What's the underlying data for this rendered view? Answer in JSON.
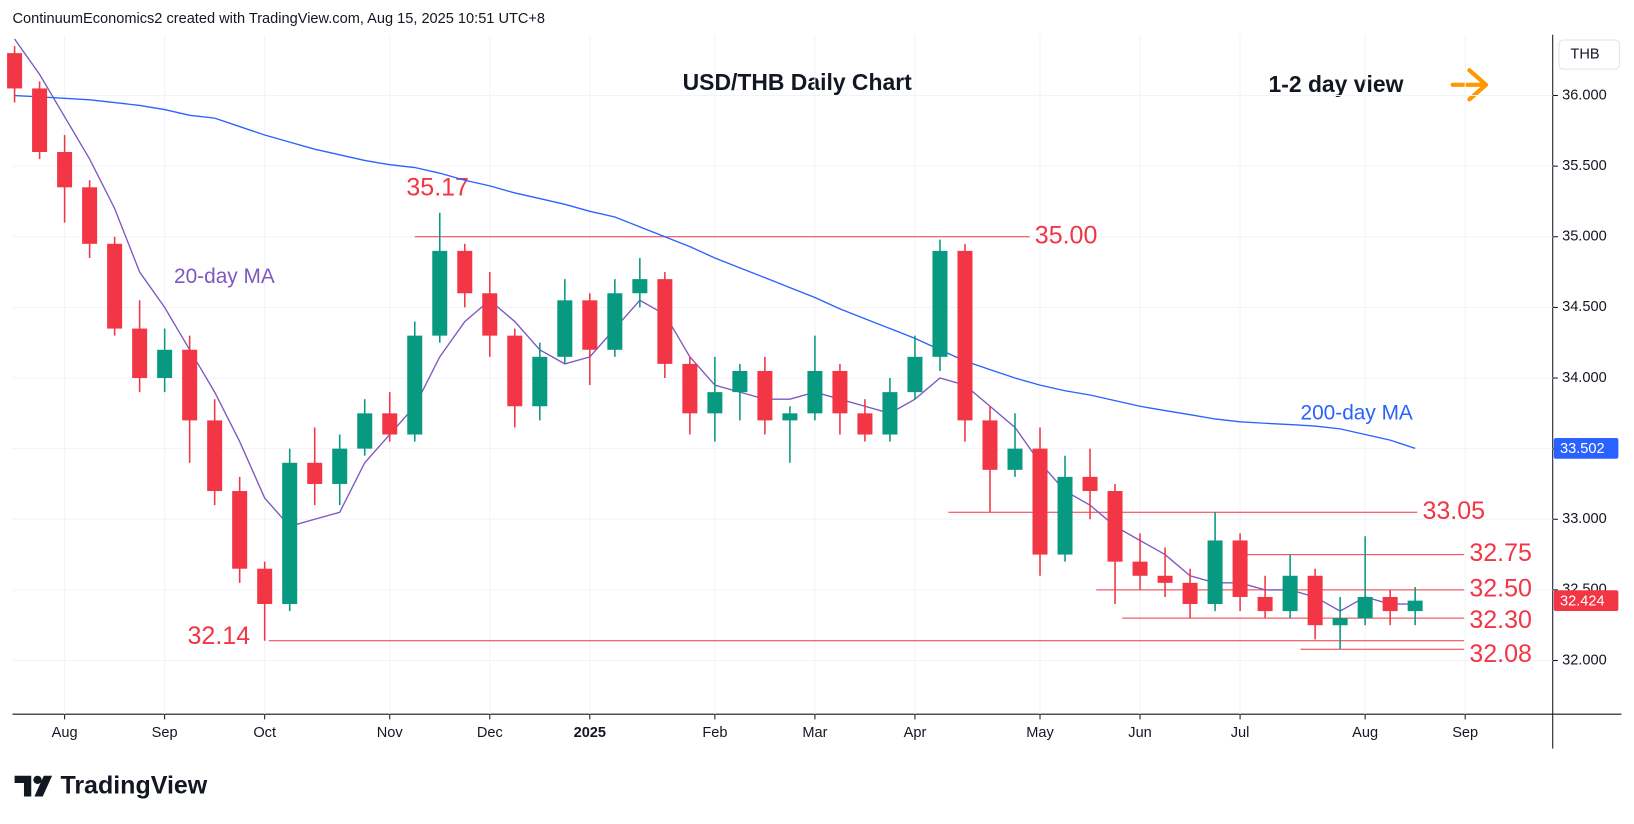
{
  "header": {
    "text": "ContinuumEconomics2 created with TradingView.com, Aug 15, 2025 10:51 UTC+8"
  },
  "footer": {
    "logo": "TradingView"
  },
  "chart_data": {
    "type": "candlestick",
    "title": "USD/THB Daily Chart",
    "subtitle": "1-2 day view",
    "currency": "THB",
    "up_color": "#089981",
    "down_color": "#f23645",
    "level_color": "#f23645",
    "grid": true,
    "categories": [
      null,
      null,
      "Aug",
      null,
      null,
      null,
      "Sep",
      null,
      null,
      null,
      "Oct",
      null,
      null,
      null,
      null,
      "Nov",
      null,
      null,
      null,
      "Dec",
      null,
      null,
      null,
      "2025",
      null,
      null,
      null,
      null,
      "Feb",
      null,
      null,
      null,
      "Mar",
      null,
      null,
      null,
      "Apr",
      null,
      null,
      null,
      null,
      "May",
      null,
      null,
      null,
      "Jun",
      null,
      null,
      null,
      "Jul",
      null,
      null,
      null,
      null,
      "Aug",
      null,
      null,
      null,
      "Sep",
      null,
      null,
      null
    ],
    "open": [
      36.3,
      36.05,
      35.6,
      35.35,
      34.95,
      34.35,
      34.0,
      34.2,
      33.7,
      33.2,
      32.65,
      32.4,
      33.4,
      33.25,
      33.5,
      33.75,
      33.6,
      34.3,
      34.9,
      34.6,
      34.3,
      33.8,
      34.15,
      34.55,
      34.2,
      34.6,
      34.7,
      34.1,
      33.75,
      33.9,
      34.05,
      33.7,
      33.75,
      34.05,
      33.75,
      33.6,
      33.9,
      34.15,
      34.9,
      33.7,
      33.35,
      33.5,
      32.75,
      33.3,
      33.2,
      32.7,
      32.6,
      32.55,
      32.4,
      32.85,
      32.45,
      32.35,
      32.6,
      32.25,
      32.3,
      32.45,
      32.35,
      null,
      null,
      null,
      null,
      null
    ],
    "high": [
      36.35,
      36.1,
      35.72,
      35.4,
      35.0,
      34.55,
      34.35,
      34.3,
      33.85,
      33.3,
      32.7,
      33.5,
      33.65,
      33.6,
      33.85,
      33.9,
      34.4,
      35.17,
      34.95,
      34.75,
      34.35,
      34.25,
      34.7,
      34.6,
      34.7,
      34.85,
      34.75,
      34.15,
      34.15,
      34.1,
      34.15,
      33.8,
      34.3,
      34.1,
      33.85,
      34.0,
      34.3,
      34.98,
      34.95,
      33.8,
      33.75,
      33.65,
      33.45,
      33.5,
      33.25,
      32.9,
      32.8,
      32.65,
      33.05,
      32.9,
      32.6,
      32.75,
      32.65,
      32.45,
      32.88,
      32.5,
      32.52,
      null,
      null,
      null,
      null,
      null
    ],
    "low": [
      35.95,
      35.55,
      35.1,
      34.85,
      34.3,
      33.9,
      33.9,
      33.4,
      33.1,
      32.55,
      32.14,
      32.35,
      33.1,
      33.1,
      33.45,
      33.55,
      33.55,
      34.25,
      34.5,
      34.15,
      33.65,
      33.7,
      34.1,
      33.95,
      34.15,
      34.5,
      34.0,
      33.6,
      33.55,
      33.7,
      33.6,
      33.4,
      33.7,
      33.6,
      33.55,
      33.55,
      33.85,
      34.05,
      33.55,
      33.05,
      33.3,
      32.6,
      32.7,
      33.0,
      32.4,
      32.5,
      32.45,
      32.3,
      32.35,
      32.35,
      32.3,
      32.3,
      32.15,
      32.08,
      32.25,
      32.25,
      32.25,
      null,
      null,
      null,
      null,
      null
    ],
    "close": [
      36.05,
      35.6,
      35.35,
      34.95,
      34.35,
      34.0,
      34.2,
      33.7,
      33.2,
      32.65,
      32.4,
      33.4,
      33.25,
      33.5,
      33.75,
      33.6,
      34.3,
      34.9,
      34.6,
      34.3,
      33.8,
      34.15,
      34.55,
      34.2,
      34.6,
      34.7,
      34.1,
      33.75,
      33.9,
      34.05,
      33.7,
      33.75,
      34.05,
      33.75,
      33.6,
      33.9,
      34.15,
      34.9,
      33.7,
      33.35,
      33.5,
      32.75,
      33.3,
      33.2,
      32.7,
      32.6,
      32.55,
      32.4,
      32.85,
      32.45,
      32.35,
      32.6,
      32.25,
      32.3,
      32.45,
      32.35,
      32.424,
      null,
      null,
      null,
      null,
      null
    ],
    "series": [
      {
        "name": "20-day MA",
        "color": "#7e57c2",
        "values": [
          36.4,
          36.15,
          35.85,
          35.55,
          35.2,
          34.75,
          34.5,
          34.2,
          33.9,
          33.55,
          33.15,
          32.95,
          33.0,
          33.05,
          33.4,
          33.6,
          33.8,
          34.15,
          34.4,
          34.55,
          34.4,
          34.2,
          34.1,
          34.15,
          34.35,
          34.55,
          34.45,
          34.15,
          33.95,
          33.9,
          33.85,
          33.85,
          33.9,
          33.85,
          33.8,
          33.75,
          33.85,
          34.0,
          33.95,
          33.8,
          33.65,
          33.4,
          33.2,
          33.1,
          32.95,
          32.85,
          32.75,
          32.6,
          32.55,
          32.55,
          32.5,
          32.5,
          32.45,
          32.35,
          32.45,
          32.4,
          32.4,
          null,
          null,
          null,
          null,
          null
        ]
      },
      {
        "name": "200-day MA",
        "color": "#2962ff",
        "values": [
          36.0,
          35.99,
          35.98,
          35.97,
          35.95,
          35.93,
          35.9,
          35.86,
          35.84,
          35.78,
          35.72,
          35.67,
          35.62,
          35.58,
          35.54,
          35.51,
          35.49,
          35.45,
          35.4,
          35.36,
          35.31,
          35.27,
          35.23,
          35.18,
          35.14,
          35.07,
          35.0,
          34.93,
          34.85,
          34.78,
          34.71,
          34.64,
          34.57,
          34.49,
          34.42,
          34.35,
          34.28,
          34.2,
          34.12,
          34.06,
          34.0,
          33.95,
          33.91,
          33.88,
          33.84,
          33.8,
          33.77,
          33.74,
          33.71,
          33.69,
          33.68,
          33.67,
          33.66,
          33.64,
          33.6,
          33.56,
          33.502,
          null,
          null,
          null,
          null,
          null
        ]
      }
    ],
    "ylim": [
      31.62,
      36.43
    ],
    "yticks": [
      {
        "value": 32,
        "label": "32.000"
      },
      {
        "value": 32.5,
        "label": "32.500"
      },
      {
        "value": 33,
        "label": "33.000"
      },
      {
        "value": 33.5,
        "label": "33.500"
      },
      {
        "value": 34,
        "label": "34.000"
      },
      {
        "value": 34.5,
        "label": "34.500"
      },
      {
        "value": 35,
        "label": "35.000"
      },
      {
        "value": 35.5,
        "label": "35.500"
      },
      {
        "value": 36,
        "label": "36.000"
      }
    ],
    "levels": [
      {
        "value": 35.0,
        "label": "35.00"
      },
      {
        "value": 33.05,
        "label": "33.05"
      },
      {
        "value": 32.75,
        "label": "32.75"
      },
      {
        "value": 32.5,
        "label": "32.50"
      },
      {
        "value": 32.3,
        "label": "32.30"
      },
      {
        "value": 32.14,
        "label": "32.14"
      },
      {
        "value": 32.08,
        "label": "32.08"
      }
    ],
    "annotations": [
      {
        "value": 35.17,
        "label": "35.17"
      }
    ]
  }
}
